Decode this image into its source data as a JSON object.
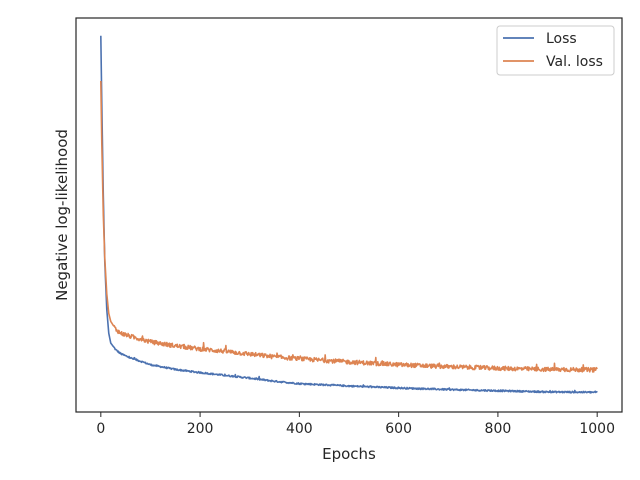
{
  "chart_data": {
    "type": "line",
    "xlabel": "Epochs",
    "ylabel": "Negative log-likelihood",
    "xlim": [
      -50,
      1050
    ],
    "ylim": [
      0,
      1
    ],
    "xticks": [
      0,
      200,
      400,
      600,
      800,
      1000
    ],
    "yticks_shown": false,
    "grid": false,
    "legend_position": "top-right",
    "series": [
      {
        "name": "Loss",
        "color": "#4c72b0",
        "noise": 0.004,
        "points": [
          [
            0,
            0.955
          ],
          [
            2,
            0.78
          ],
          [
            5,
            0.55
          ],
          [
            8,
            0.38
          ],
          [
            12,
            0.26
          ],
          [
            16,
            0.2
          ],
          [
            20,
            0.175
          ],
          [
            30,
            0.158
          ],
          [
            40,
            0.148
          ],
          [
            60,
            0.137
          ],
          [
            80,
            0.129
          ],
          [
            100,
            0.12
          ],
          [
            150,
            0.108
          ],
          [
            200,
            0.1
          ],
          [
            250,
            0.093
          ],
          [
            300,
            0.086
          ],
          [
            350,
            0.078
          ],
          [
            400,
            0.072
          ],
          [
            500,
            0.066
          ],
          [
            600,
            0.061
          ],
          [
            700,
            0.057
          ],
          [
            800,
            0.054
          ],
          [
            900,
            0.051
          ],
          [
            1000,
            0.05
          ]
        ]
      },
      {
        "name": "Val. loss",
        "color": "#dd8452",
        "noise": 0.011,
        "points": [
          [
            0,
            0.84
          ],
          [
            2,
            0.68
          ],
          [
            5,
            0.5
          ],
          [
            8,
            0.39
          ],
          [
            12,
            0.3
          ],
          [
            16,
            0.25
          ],
          [
            20,
            0.23
          ],
          [
            30,
            0.21
          ],
          [
            40,
            0.2
          ],
          [
            60,
            0.192
          ],
          [
            80,
            0.185
          ],
          [
            100,
            0.178
          ],
          [
            150,
            0.168
          ],
          [
            200,
            0.16
          ],
          [
            250,
            0.154
          ],
          [
            300,
            0.147
          ],
          [
            350,
            0.14
          ],
          [
            400,
            0.135
          ],
          [
            500,
            0.127
          ],
          [
            600,
            0.12
          ],
          [
            700,
            0.115
          ],
          [
            800,
            0.111
          ],
          [
            900,
            0.108
          ],
          [
            1000,
            0.107
          ]
        ]
      }
    ]
  }
}
